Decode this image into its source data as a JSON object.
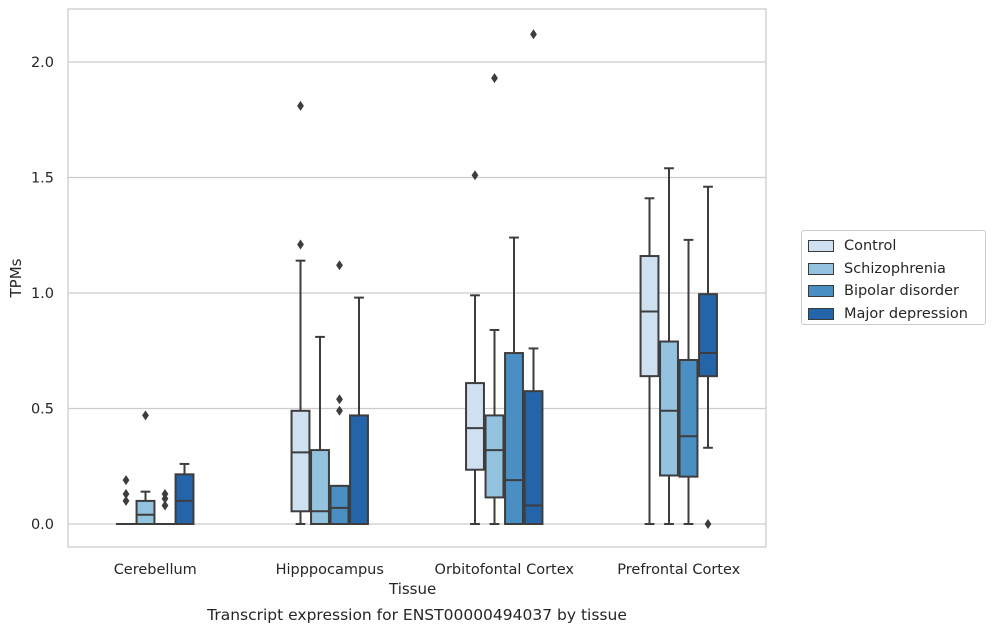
{
  "chart_data": {
    "type": "box",
    "caption": "Transcript expression for ENST00000494037 by tissue",
    "xlabel": "Tissue",
    "ylabel": "TPMs",
    "ylim": [
      -0.1,
      2.24
    ],
    "yticks": [
      "0.0",
      "0.5",
      "1.0",
      "1.5",
      "2.0"
    ],
    "grid": "horizontal",
    "legend_position": "right",
    "categories": [
      "Cerebellum",
      "Hipppocampus",
      "Orbitofontal Cortex",
      "Prefrontal Cortex"
    ],
    "series": [
      {
        "name": "Control",
        "color": "#cfe0f1",
        "boxes": [
          {
            "whislo": 0,
            "q1": 0,
            "med": 0,
            "q3": 0,
            "whishi": 0,
            "fliers": [
              0.1,
              0.13,
              0.19
            ]
          },
          {
            "whislo": 0,
            "q1": 0.055,
            "med": 0.31,
            "q3": 0.49,
            "whishi": 1.14,
            "fliers": [
              1.21,
              1.81
            ]
          },
          {
            "whislo": 0,
            "q1": 0.235,
            "med": 0.415,
            "q3": 0.61,
            "whishi": 0.99,
            "fliers": [
              1.51
            ]
          },
          {
            "whislo": 0,
            "q1": 0.64,
            "med": 0.92,
            "q3": 1.16,
            "whishi": 1.41,
            "fliers": []
          }
        ]
      },
      {
        "name": "Schizophrenia",
        "color": "#93c3df",
        "boxes": [
          {
            "whislo": 0,
            "q1": 0,
            "med": 0.04,
            "q3": 0.1,
            "whishi": 0.14,
            "fliers": [
              0.47
            ]
          },
          {
            "whislo": 0,
            "q1": 0,
            "med": 0.055,
            "q3": 0.32,
            "whishi": 0.81,
            "fliers": []
          },
          {
            "whislo": 0,
            "q1": 0.115,
            "med": 0.32,
            "q3": 0.47,
            "whishi": 0.84,
            "fliers": [
              1.93
            ]
          },
          {
            "whislo": 0,
            "q1": 0.21,
            "med": 0.49,
            "q3": 0.79,
            "whishi": 1.54,
            "fliers": []
          }
        ]
      },
      {
        "name": "Bipolar disorder",
        "color": "#4a8fc4",
        "boxes": [
          {
            "whislo": 0,
            "q1": 0,
            "med": 0,
            "q3": 0,
            "whishi": 0,
            "fliers": [
              0.08,
              0.11,
              0.13
            ]
          },
          {
            "whislo": 0,
            "q1": 0,
            "med": 0.07,
            "q3": 0.165,
            "whishi": 0.165,
            "fliers": [
              0.49,
              0.54,
              1.12
            ]
          },
          {
            "whislo": 0,
            "q1": 0,
            "med": 0.19,
            "q3": 0.74,
            "whishi": 1.24,
            "fliers": []
          },
          {
            "whislo": 0,
            "q1": 0.205,
            "med": 0.38,
            "q3": 0.71,
            "whishi": 1.23,
            "fliers": []
          }
        ]
      },
      {
        "name": "Major depression",
        "color": "#2464a8",
        "boxes": [
          {
            "whislo": 0,
            "q1": 0,
            "med": 0.1,
            "q3": 0.215,
            "whishi": 0.26,
            "fliers": []
          },
          {
            "whislo": 0,
            "q1": 0,
            "med": 0,
            "q3": 0.47,
            "whishi": 0.98,
            "fliers": []
          },
          {
            "whislo": 0,
            "q1": 0,
            "med": 0.08,
            "q3": 0.575,
            "whishi": 0.76,
            "fliers": [
              2.12
            ]
          },
          {
            "whislo": 0.33,
            "q1": 0.64,
            "med": 0.74,
            "q3": 0.995,
            "whishi": 1.46,
            "fliers": [
              0
            ]
          }
        ]
      }
    ]
  }
}
